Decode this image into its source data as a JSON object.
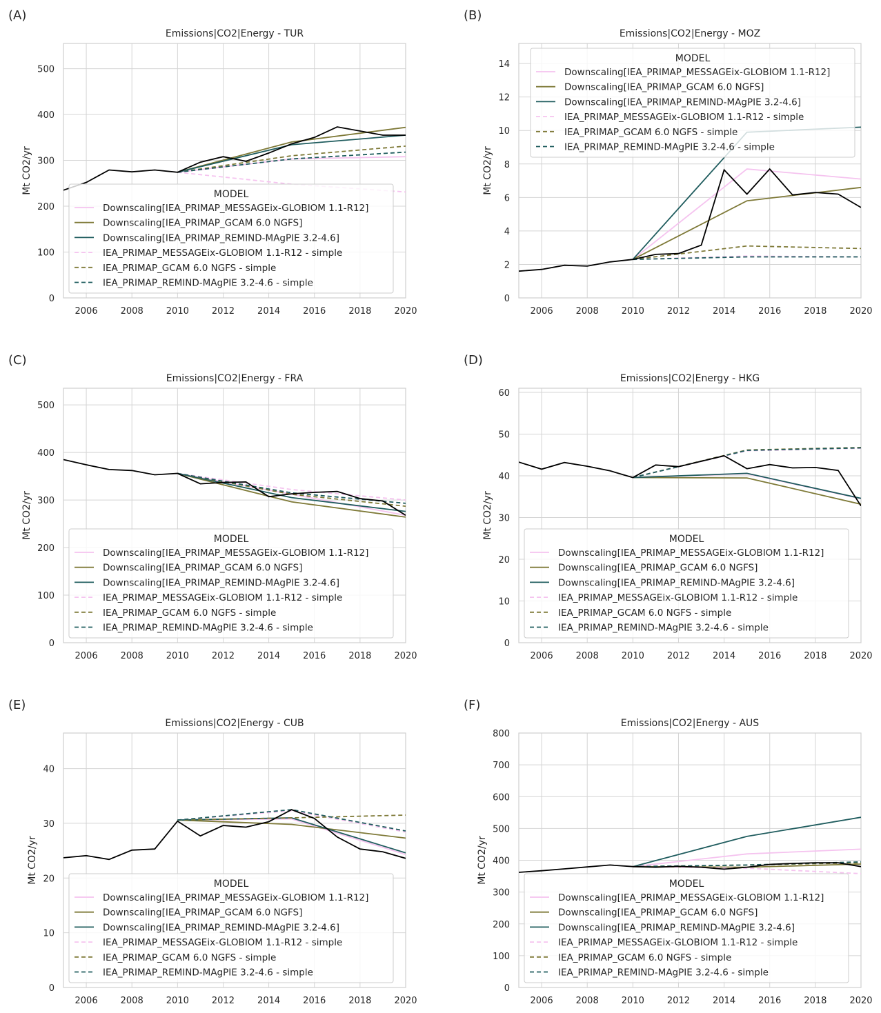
{
  "figure_labels": [
    "(A)",
    "(B)",
    "(C)",
    "(D)",
    "(E)",
    "(F)"
  ],
  "legend": {
    "title": "MODEL",
    "entries": [
      {
        "label": "Downscaling[IEA_PRIMAP_MESSAGEix-GLOBIOM 1.1-R12]",
        "color": "#f5c3ef",
        "dash": "solid"
      },
      {
        "label": "Downscaling[IEA_PRIMAP_GCAM 6.0 NGFS]",
        "color": "#7e7937",
        "dash": "solid"
      },
      {
        "label": "Downscaling[IEA_PRIMAP_REMIND-MAgPIE 3.2-4.6]",
        "color": "#1f5c5e",
        "dash": "solid"
      },
      {
        "label": "IEA_PRIMAP_MESSAGEix-GLOBIOM 1.1-R12 - simple",
        "color": "#f5c3ef",
        "dash": "dashed"
      },
      {
        "label": "IEA_PRIMAP_GCAM 6.0 NGFS - simple",
        "color": "#7e7937",
        "dash": "dashed"
      },
      {
        "label": "IEA_PRIMAP_REMIND-MAgPIE 3.2-4.6 - simple",
        "color": "#1f5c5e",
        "dash": "dashed"
      }
    ]
  },
  "history_color": "#000000",
  "chart_data": [
    {
      "type": "line",
      "panel": "(A)",
      "title": "Emissions|CO2|Energy - TUR",
      "ylabel": "Mt CO2/yr",
      "xlim": [
        2005,
        2020
      ],
      "ylim": [
        0,
        555
      ],
      "xticks": [
        2006,
        2008,
        2010,
        2012,
        2014,
        2016,
        2018,
        2020
      ],
      "yticks": [
        0,
        100,
        200,
        300,
        400,
        500
      ],
      "legend_position": "lower-center",
      "history": {
        "x": [
          2005,
          2006,
          2007,
          2008,
          2009,
          2010,
          2011,
          2012,
          2013,
          2014,
          2015,
          2016,
          2017,
          2018,
          2019,
          2020
        ],
        "y": [
          235,
          252,
          279,
          275,
          279,
          274,
          296,
          308,
          298,
          316,
          336,
          350,
          373,
          364,
          355,
          355
        ]
      },
      "series": [
        {
          "name": "Downscaling[IEA_PRIMAP_MESSAGEix-GLOBIOM 1.1-R12]",
          "x": [
            2010,
            2015,
            2020
          ],
          "y": [
            274,
            303,
            308
          ]
        },
        {
          "name": "Downscaling[IEA_PRIMAP_GCAM 6.0 NGFS]",
          "x": [
            2010,
            2015,
            2020
          ],
          "y": [
            274,
            340,
            372
          ]
        },
        {
          "name": "Downscaling[IEA_PRIMAP_REMIND-MAgPIE 3.2-4.6]",
          "x": [
            2010,
            2015,
            2020
          ],
          "y": [
            274,
            334,
            355
          ]
        },
        {
          "name": "IEA_PRIMAP_MESSAGEix-GLOBIOM 1.1-R12 - simple",
          "x": [
            2010,
            2015,
            2020
          ],
          "y": [
            274,
            248,
            231
          ]
        },
        {
          "name": "IEA_PRIMAP_GCAM 6.0 NGFS - simple",
          "x": [
            2010,
            2015,
            2020
          ],
          "y": [
            274,
            310,
            331
          ]
        },
        {
          "name": "IEA_PRIMAP_REMIND-MAgPIE 3.2-4.6 - simple",
          "x": [
            2010,
            2015,
            2020
          ],
          "y": [
            274,
            303,
            318
          ]
        }
      ]
    },
    {
      "type": "line",
      "panel": "(B)",
      "title": "Emissions|CO2|Energy - MOZ",
      "ylabel": "Mt CO2/yr",
      "xlim": [
        2005,
        2020
      ],
      "ylim": [
        0,
        15.2
      ],
      "xticks": [
        2006,
        2008,
        2010,
        2012,
        2014,
        2016,
        2018,
        2020
      ],
      "yticks": [
        0,
        2,
        4,
        6,
        8,
        10,
        12,
        14
      ],
      "legend_position": "upper-center",
      "history": {
        "x": [
          2005,
          2006,
          2007,
          2008,
          2009,
          2010,
          2011,
          2012,
          2013,
          2014,
          2015,
          2016,
          2017,
          2018,
          2019,
          2020
        ],
        "y": [
          1.6,
          1.7,
          1.95,
          1.9,
          2.15,
          2.3,
          2.6,
          2.65,
          3.15,
          7.65,
          6.2,
          7.7,
          6.15,
          6.3,
          6.2,
          5.4
        ]
      },
      "series": [
        {
          "name": "Downscaling[IEA_PRIMAP_MESSAGEix-GLOBIOM 1.1-R12]",
          "x": [
            2010,
            2015,
            2020
          ],
          "y": [
            2.3,
            7.7,
            7.1
          ]
        },
        {
          "name": "Downscaling[IEA_PRIMAP_GCAM 6.0 NGFS]",
          "x": [
            2010,
            2015,
            2020
          ],
          "y": [
            2.3,
            5.8,
            6.6
          ]
        },
        {
          "name": "Downscaling[IEA_PRIMAP_REMIND-MAgPIE 3.2-4.6]",
          "x": [
            2010,
            2015,
            2020
          ],
          "y": [
            2.3,
            9.9,
            10.2
          ]
        },
        {
          "name": "IEA_PRIMAP_MESSAGEix-GLOBIOM 1.1-R12 - simple",
          "x": [
            2010,
            2015,
            2020
          ],
          "y": [
            2.3,
            2.5,
            2.45
          ]
        },
        {
          "name": "IEA_PRIMAP_GCAM 6.0 NGFS - simple",
          "x": [
            2010,
            2015,
            2020
          ],
          "y": [
            2.3,
            3.1,
            2.95
          ]
        },
        {
          "name": "IEA_PRIMAP_REMIND-MAgPIE 3.2-4.6 - simple",
          "x": [
            2010,
            2015,
            2020
          ],
          "y": [
            2.3,
            2.45,
            2.45
          ]
        }
      ]
    },
    {
      "type": "line",
      "panel": "(C)",
      "title": "Emissions|CO2|Energy - FRA",
      "ylabel": "Mt CO2/yr",
      "xlim": [
        2005,
        2020
      ],
      "ylim": [
        0,
        535
      ],
      "xticks": [
        2006,
        2008,
        2010,
        2012,
        2014,
        2016,
        2018,
        2020
      ],
      "yticks": [
        0,
        100,
        200,
        300,
        400,
        500
      ],
      "legend_position": "lower-center",
      "history": {
        "x": [
          2005,
          2006,
          2007,
          2008,
          2009,
          2010,
          2011,
          2012,
          2013,
          2014,
          2015,
          2016,
          2017,
          2018,
          2019,
          2020
        ],
        "y": [
          385,
          374,
          364,
          362,
          353,
          356,
          334,
          337,
          338,
          307,
          313,
          316,
          318,
          303,
          298,
          268
        ]
      },
      "series": [
        {
          "name": "Downscaling[IEA_PRIMAP_MESSAGEix-GLOBIOM 1.1-R12]",
          "x": [
            2010,
            2015,
            2020
          ],
          "y": [
            356,
            312,
            268
          ]
        },
        {
          "name": "Downscaling[IEA_PRIMAP_GCAM 6.0 NGFS]",
          "x": [
            2010,
            2015,
            2020
          ],
          "y": [
            356,
            296,
            264
          ]
        },
        {
          "name": "Downscaling[IEA_PRIMAP_REMIND-MAgPIE 3.2-4.6]",
          "x": [
            2010,
            2015,
            2020
          ],
          "y": [
            356,
            305,
            276
          ]
        },
        {
          "name": "IEA_PRIMAP_MESSAGEix-GLOBIOM 1.1-R12 - simple",
          "x": [
            2010,
            2015,
            2020
          ],
          "y": [
            356,
            322,
            300
          ]
        },
        {
          "name": "IEA_PRIMAP_GCAM 6.0 NGFS - simple",
          "x": [
            2010,
            2015,
            2020
          ],
          "y": [
            356,
            312,
            287
          ]
        },
        {
          "name": "IEA_PRIMAP_REMIND-MAgPIE 3.2-4.6 - simple",
          "x": [
            2010,
            2015,
            2020
          ],
          "y": [
            356,
            315,
            293
          ]
        }
      ]
    },
    {
      "type": "line",
      "panel": "(D)",
      "title": "Emissions|CO2|Energy - HKG",
      "ylabel": "Mt CO2/yr",
      "xlim": [
        2005,
        2020
      ],
      "ylim": [
        0,
        61
      ],
      "xticks": [
        2006,
        2008,
        2010,
        2012,
        2014,
        2016,
        2018,
        2020
      ],
      "yticks": [
        0,
        10,
        20,
        30,
        40,
        50,
        60
      ],
      "legend_position": "lower-center",
      "history": {
        "x": [
          2005,
          2006,
          2007,
          2008,
          2009,
          2010,
          2011,
          2012,
          2013,
          2014,
          2015,
          2016,
          2017,
          2018,
          2019,
          2020
        ],
        "y": [
          43.3,
          41.6,
          43.2,
          42.3,
          41.2,
          39.6,
          42.6,
          42.2,
          43.5,
          44.8,
          41.7,
          42.7,
          41.9,
          42.0,
          41.3,
          32.8
        ]
      },
      "series": [
        {
          "name": "Downscaling[IEA_PRIMAP_MESSAGEix-GLOBIOM 1.1-R12]",
          "x": [
            2010,
            2015,
            2020
          ],
          "y": [
            39.6,
            40.5,
            34.5
          ]
        },
        {
          "name": "Downscaling[IEA_PRIMAP_GCAM 6.0 NGFS]",
          "x": [
            2010,
            2015,
            2020
          ],
          "y": [
            39.6,
            39.5,
            33.2
          ]
        },
        {
          "name": "Downscaling[IEA_PRIMAP_REMIND-MAgPIE 3.2-4.6]",
          "x": [
            2010,
            2015,
            2020
          ],
          "y": [
            39.6,
            40.6,
            34.6
          ]
        },
        {
          "name": "IEA_PRIMAP_MESSAGEix-GLOBIOM 1.1-R12 - simple",
          "x": [
            2010,
            2015,
            2020
          ],
          "y": [
            39.6,
            46.0,
            46.6
          ]
        },
        {
          "name": "IEA_PRIMAP_GCAM 6.0 NGFS - simple",
          "x": [
            2010,
            2015,
            2020
          ],
          "y": [
            39.6,
            46.2,
            46.8
          ]
        },
        {
          "name": "IEA_PRIMAP_REMIND-MAgPIE 3.2-4.6 - simple",
          "x": [
            2010,
            2015,
            2020
          ],
          "y": [
            39.6,
            46.1,
            46.7
          ]
        }
      ]
    },
    {
      "type": "line",
      "panel": "(E)",
      "title": "Emissions|CO2|Energy - CUB",
      "ylabel": "Mt CO2/yr",
      "xlim": [
        2005,
        2020
      ],
      "ylim": [
        0,
        46.5
      ],
      "xticks": [
        2006,
        2008,
        2010,
        2012,
        2014,
        2016,
        2018,
        2020
      ],
      "yticks": [
        0,
        10,
        20,
        30,
        40
      ],
      "legend_position": "lower-center",
      "history": {
        "x": [
          2005,
          2006,
          2007,
          2008,
          2009,
          2010,
          2011,
          2012,
          2013,
          2014,
          2015,
          2016,
          2017,
          2018,
          2019,
          2020
        ],
        "y": [
          23.7,
          24.1,
          23.4,
          25.1,
          25.3,
          30.4,
          27.7,
          29.6,
          29.3,
          30.3,
          32.5,
          30.9,
          27.5,
          25.3,
          24.8,
          23.6
        ]
      },
      "series": [
        {
          "name": "Downscaling[IEA_PRIMAP_MESSAGEix-GLOBIOM 1.1-R12]",
          "x": [
            2010,
            2015,
            2020
          ],
          "y": [
            30.6,
            30.8,
            24.3
          ]
        },
        {
          "name": "Downscaling[IEA_PRIMAP_GCAM 6.0 NGFS]",
          "x": [
            2010,
            2015,
            2020
          ],
          "y": [
            30.6,
            29.8,
            27.3
          ]
        },
        {
          "name": "Downscaling[IEA_PRIMAP_REMIND-MAgPIE 3.2-4.6]",
          "x": [
            2010,
            2015,
            2020
          ],
          "y": [
            30.6,
            31.0,
            24.6
          ]
        },
        {
          "name": "IEA_PRIMAP_MESSAGEix-GLOBIOM 1.1-R12 - simple",
          "x": [
            2010,
            2015,
            2020
          ],
          "y": [
            30.6,
            32.3,
            28.4
          ]
        },
        {
          "name": "IEA_PRIMAP_GCAM 6.0 NGFS - simple",
          "x": [
            2010,
            2015,
            2020
          ],
          "y": [
            30.6,
            31.0,
            31.5
          ]
        },
        {
          "name": "IEA_PRIMAP_REMIND-MAgPIE 3.2-4.6 - simple",
          "x": [
            2010,
            2015,
            2020
          ],
          "y": [
            30.6,
            32.5,
            28.6
          ]
        }
      ]
    },
    {
      "type": "line",
      "panel": "(F)",
      "title": "Emissions|CO2|Energy - AUS",
      "ylabel": "Mt CO2/yr",
      "xlim": [
        2005,
        2020
      ],
      "ylim": [
        0,
        800
      ],
      "xticks": [
        2006,
        2008,
        2010,
        2012,
        2014,
        2016,
        2018,
        2020
      ],
      "yticks": [
        0,
        100,
        200,
        300,
        400,
        500,
        600,
        700,
        800
      ],
      "legend_position": "lower-center",
      "history": {
        "x": [
          2005,
          2006,
          2007,
          2008,
          2009,
          2010,
          2011,
          2012,
          2013,
          2014,
          2015,
          2016,
          2017,
          2018,
          2019,
          2020
        ],
        "y": [
          362,
          367,
          373,
          379,
          385,
          380,
          378,
          381,
          378,
          372,
          378,
          387,
          390,
          392,
          392,
          380
        ]
      },
      "series": [
        {
          "name": "Downscaling[IEA_PRIMAP_MESSAGEix-GLOBIOM 1.1-R12]",
          "x": [
            2010,
            2015,
            2020
          ],
          "y": [
            380,
            420,
            435
          ]
        },
        {
          "name": "Downscaling[IEA_PRIMAP_GCAM 6.0 NGFS]",
          "x": [
            2010,
            2015,
            2020
          ],
          "y": [
            380,
            378,
            388
          ]
        },
        {
          "name": "Downscaling[IEA_PRIMAP_REMIND-MAgPIE 3.2-4.6]",
          "x": [
            2010,
            2015,
            2020
          ],
          "y": [
            380,
            475,
            535
          ]
        },
        {
          "name": "IEA_PRIMAP_MESSAGEix-GLOBIOM 1.1-R12 - simple",
          "x": [
            2010,
            2015,
            2020
          ],
          "y": [
            380,
            375,
            358
          ]
        },
        {
          "name": "IEA_PRIMAP_GCAM 6.0 NGFS - simple",
          "x": [
            2010,
            2015,
            2020
          ],
          "y": [
            380,
            385,
            392
          ]
        },
        {
          "name": "IEA_PRIMAP_REMIND-MAgPIE 3.2-4.6 - simple",
          "x": [
            2010,
            2015,
            2020
          ],
          "y": [
            380,
            385,
            395
          ]
        }
      ]
    }
  ]
}
